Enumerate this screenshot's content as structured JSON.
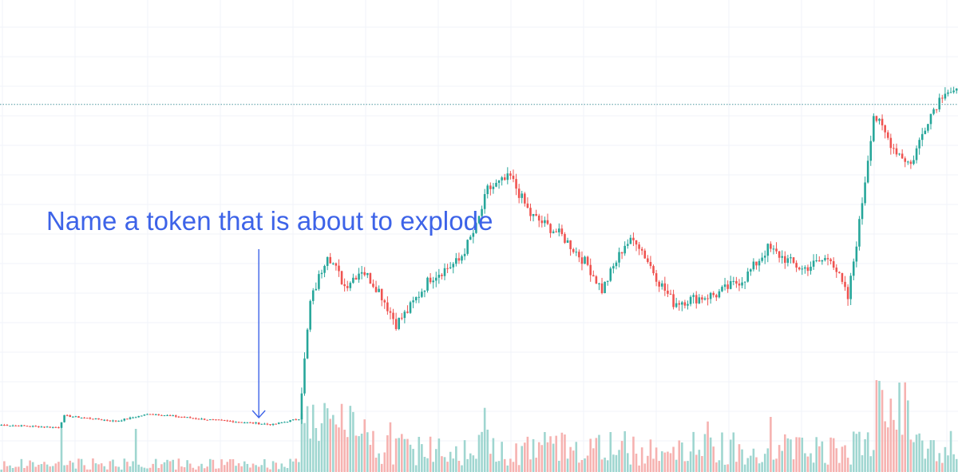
{
  "annotation": {
    "text": "Name a token that is about to explode",
    "color": "#3d63e8",
    "target_candle_index": 90
  },
  "colors": {
    "up": "#26a69a",
    "down": "#ef5350",
    "volume_up": "#9fd6d0",
    "volume_down": "#f6b2b0",
    "grid": "#f0f3fa",
    "price_line": "#4f98a0"
  },
  "chart_data": {
    "type": "candlestick",
    "title": "",
    "xlabel": "",
    "ylabel": "",
    "grid": true,
    "legend": "none",
    "ylim": [
      0,
      100
    ],
    "current_price": 80.4,
    "close_path": [
      [
        0,
        3.8
      ],
      [
        20,
        3.2
      ],
      [
        22,
        6.0
      ],
      [
        40,
        4.7
      ],
      [
        52,
        6.5
      ],
      [
        70,
        5.2
      ],
      [
        95,
        3.9
      ],
      [
        104,
        5.3
      ],
      [
        108,
        33
      ],
      [
        114,
        45
      ],
      [
        120,
        37
      ],
      [
        126,
        41
      ],
      [
        132,
        36
      ],
      [
        138,
        28
      ],
      [
        142,
        31
      ],
      [
        150,
        39
      ],
      [
        160,
        43
      ],
      [
        166,
        51
      ],
      [
        170,
        60
      ],
      [
        178,
        63
      ],
      [
        185,
        54
      ],
      [
        196,
        49
      ],
      [
        205,
        42
      ],
      [
        210,
        36
      ],
      [
        218,
        47
      ],
      [
        222,
        48
      ],
      [
        230,
        38
      ],
      [
        235,
        33
      ],
      [
        250,
        35
      ],
      [
        260,
        39
      ],
      [
        268,
        46
      ],
      [
        280,
        41
      ],
      [
        290,
        44
      ],
      [
        296,
        34
      ],
      [
        300,
        52
      ],
      [
        305,
        78
      ],
      [
        312,
        70
      ],
      [
        318,
        66
      ],
      [
        324,
        77
      ],
      [
        330,
        84
      ],
      [
        334,
        83
      ]
    ],
    "volume_range": [
      0,
      100
    ]
  }
}
